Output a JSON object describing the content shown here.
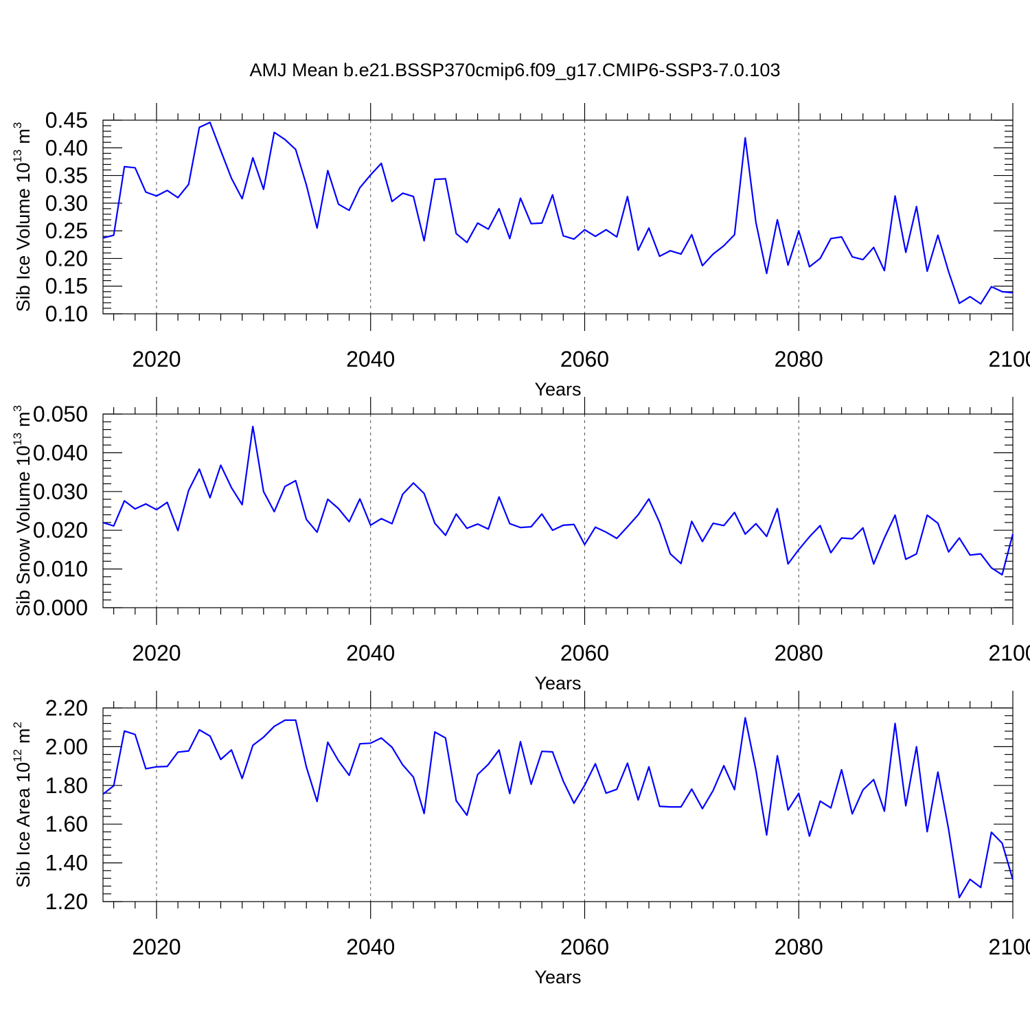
{
  "title": "AMJ Mean b.e21.BSSP370cmip6.f09_g17.CMIP6-SSP3-7.0.103",
  "colors": {
    "line": "#0000ff",
    "axis": "#000000"
  },
  "chart_data": [
    {
      "type": "line",
      "ylabel": "Sib Ice Volume 10",
      "ylabel_exponent": "13",
      "ylabel_unit": "m",
      "ylabel_unit_exponent": "3",
      "xlabel": "Years",
      "xlim": [
        2015,
        2100
      ],
      "ylim": [
        0.1,
        0.45
      ],
      "xticks": [
        "2020",
        "2040",
        "2060",
        "2080",
        "2100"
      ],
      "yticks": [
        "0.10",
        "0.15",
        "0.20",
        "0.25",
        "0.30",
        "0.35",
        "0.40",
        "0.45"
      ],
      "grid": "vertical dashed at major x ticks",
      "x_start": 2015,
      "values": [
        0.237,
        0.242,
        0.366,
        0.364,
        0.32,
        0.313,
        0.323,
        0.31,
        0.334,
        0.437,
        0.446,
        0.395,
        0.345,
        0.308,
        0.382,
        0.325,
        0.428,
        0.415,
        0.397,
        0.333,
        0.255,
        0.359,
        0.298,
        0.287,
        0.328,
        0.351,
        0.372,
        0.303,
        0.318,
        0.312,
        0.232,
        0.343,
        0.344,
        0.245,
        0.229,
        0.264,
        0.253,
        0.29,
        0.236,
        0.309,
        0.263,
        0.264,
        0.315,
        0.241,
        0.235,
        0.252,
        0.24,
        0.252,
        0.239,
        0.312,
        0.215,
        0.255,
        0.204,
        0.214,
        0.208,
        0.243,
        0.187,
        0.208,
        0.223,
        0.243,
        0.418,
        0.265,
        0.173,
        0.27,
        0.188,
        0.25,
        0.185,
        0.2,
        0.236,
        0.239,
        0.203,
        0.198,
        0.22,
        0.178,
        0.313,
        0.211,
        0.294,
        0.177,
        0.242,
        0.176,
        0.119,
        0.131,
        0.118,
        0.149,
        0.14,
        0.138
      ]
    },
    {
      "type": "line",
      "ylabel": "Sib Snow Volume 10",
      "ylabel_exponent": "13",
      "ylabel_unit": "m",
      "ylabel_unit_exponent": "3",
      "xlabel": "Years",
      "xlim": [
        2015,
        2100
      ],
      "ylim": [
        0.0,
        0.05
      ],
      "xticks": [
        "2020",
        "2040",
        "2060",
        "2080",
        "2100"
      ],
      "yticks": [
        "0.000",
        "0.010",
        "0.020",
        "0.030",
        "0.040",
        "0.050"
      ],
      "grid": "vertical dashed at major x ticks",
      "x_start": 2015,
      "values": [
        0.022,
        0.0211,
        0.0276,
        0.0255,
        0.0268,
        0.0253,
        0.0272,
        0.0199,
        0.0303,
        0.0358,
        0.0284,
        0.0368,
        0.031,
        0.0266,
        0.0468,
        0.03,
        0.0248,
        0.0313,
        0.0328,
        0.0228,
        0.0195,
        0.028,
        0.0256,
        0.0222,
        0.0281,
        0.0213,
        0.023,
        0.0217,
        0.0293,
        0.0322,
        0.0295,
        0.0218,
        0.0187,
        0.0242,
        0.0205,
        0.0216,
        0.0203,
        0.0286,
        0.0217,
        0.0207,
        0.0209,
        0.0242,
        0.02,
        0.0213,
        0.0215,
        0.0163,
        0.0208,
        0.0195,
        0.0179,
        0.0209,
        0.024,
        0.0281,
        0.022,
        0.0139,
        0.0114,
        0.0223,
        0.0171,
        0.0218,
        0.0212,
        0.0246,
        0.019,
        0.0217,
        0.0184,
        0.0256,
        0.0113,
        0.015,
        0.0183,
        0.0212,
        0.0142,
        0.018,
        0.0178,
        0.0206,
        0.0113,
        0.018,
        0.0239,
        0.0125,
        0.0139,
        0.0239,
        0.0218,
        0.0144,
        0.018,
        0.0136,
        0.0139,
        0.0103,
        0.0085,
        0.019
      ]
    },
    {
      "type": "line",
      "ylabel": "Sib Ice Area 10",
      "ylabel_exponent": "12",
      "ylabel_unit": "m",
      "ylabel_unit_exponent": "2",
      "xlabel": "Years",
      "xlim": [
        2015,
        2100
      ],
      "ylim": [
        1.2,
        2.2
      ],
      "xticks": [
        "2020",
        "2040",
        "2060",
        "2080",
        "2100"
      ],
      "yticks": [
        "1.20",
        "1.40",
        "1.60",
        "1.80",
        "2.00",
        "2.20"
      ],
      "grid": "vertical dashed at major x ticks",
      "x_start": 2015,
      "values": [
        1.755,
        1.798,
        2.081,
        2.063,
        1.886,
        1.896,
        1.898,
        1.972,
        1.978,
        2.087,
        2.055,
        1.934,
        1.983,
        1.836,
        2.007,
        2.049,
        2.105,
        2.137,
        2.137,
        1.895,
        1.717,
        2.023,
        1.927,
        1.852,
        2.015,
        2.018,
        2.045,
        1.997,
        1.906,
        1.843,
        1.655,
        2.076,
        2.045,
        1.721,
        1.646,
        1.856,
        1.909,
        1.983,
        1.758,
        2.026,
        1.806,
        1.976,
        1.973,
        1.822,
        1.708,
        1.801,
        1.912,
        1.76,
        1.78,
        1.915,
        1.725,
        1.896,
        1.692,
        1.689,
        1.689,
        1.781,
        1.68,
        1.774,
        1.902,
        1.778,
        2.149,
        1.879,
        1.544,
        1.953,
        1.673,
        1.759,
        1.538,
        1.719,
        1.684,
        1.881,
        1.653,
        1.777,
        1.83,
        1.667,
        2.12,
        1.695,
        2.0,
        1.561,
        1.869,
        1.573,
        1.221,
        1.315,
        1.273,
        1.558,
        1.502,
        1.314
      ]
    }
  ]
}
